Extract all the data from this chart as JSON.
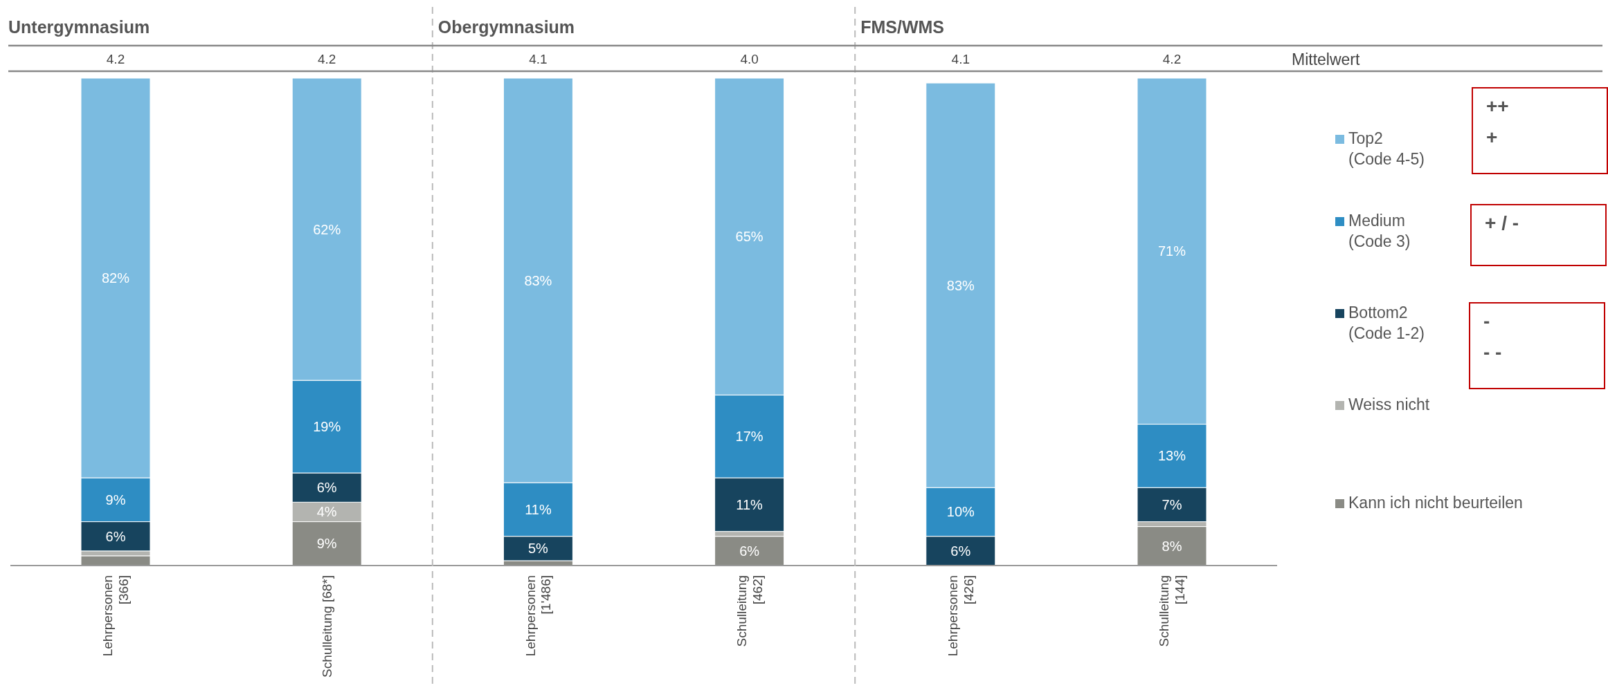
{
  "chart_data": {
    "type": "bar",
    "stacked": true,
    "categories": [
      "Lehrpersonen\n[366]",
      "Schulleitung [68*]",
      "Lehrpersonen\n[1'486]",
      "Schulleitung\n[462]",
      "Lehrpersonen\n[426]",
      "Schulleitung\n[144]"
    ],
    "ylim": [
      0,
      100
    ],
    "tick_labels": "x",
    "legend": "right",
    "series": [
      {
        "name": "Kann ich nicht beurteilen",
        "color": "#8a8b85",
        "values": [
          2,
          9,
          1,
          6,
          0,
          8
        ],
        "value_labels": [
          null,
          "9%",
          null,
          "6%",
          null,
          "8%"
        ]
      },
      {
        "name": "Weiss nicht",
        "color": "#b3b4b0",
        "values": [
          1,
          4,
          0,
          1,
          0,
          1
        ],
        "value_labels": [
          null,
          "4%",
          null,
          null,
          null,
          null
        ]
      },
      {
        "name": "Bottom2\n(Code 1-2)",
        "color": "#17445e",
        "values": [
          6,
          6,
          5,
          11,
          6,
          7
        ],
        "value_labels": [
          "6%",
          "6%",
          "5%",
          "11%",
          "6%",
          "7%"
        ]
      },
      {
        "name": "Medium\n(Code 3)",
        "color": "#2e8dc3",
        "values": [
          9,
          19,
          11,
          17,
          10,
          13
        ],
        "value_labels": [
          "9%",
          "19%",
          "11%",
          "17%",
          "10%",
          "13%"
        ]
      },
      {
        "name": "Top2\n(Code 4-5)",
        "color": "#7bbbe0",
        "values": [
          82,
          62,
          83,
          65,
          83,
          71
        ],
        "value_labels": [
          "82%",
          "62%",
          "83%",
          "65%",
          "83%",
          "71%"
        ]
      }
    ],
    "annotations": [
      "Untergymnasium",
      "Obergymnasium",
      "FMS/WMS",
      "Mittelwert",
      "4.2",
      "4.2",
      "4.1",
      "4.0",
      "4.1",
      "4.2",
      "++\n+",
      "+ / -",
      "-\n- -"
    ]
  }
}
